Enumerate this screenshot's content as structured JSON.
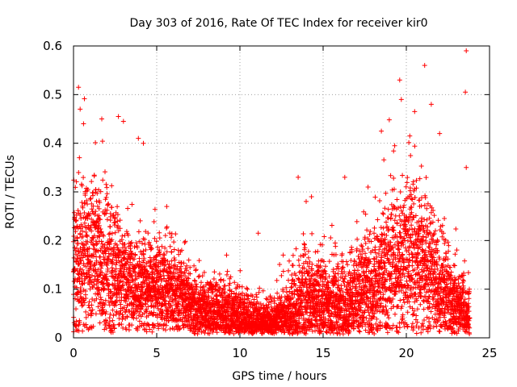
{
  "chart_data": {
    "type": "scatter",
    "title": "Day 303 of 2016, Rate Of TEC Index for receiver kir0",
    "xlabel": "GPS time / hours",
    "ylabel": "ROTI / TECUs",
    "xlim": [
      0,
      25
    ],
    "ylim": [
      0,
      0.6
    ],
    "xticks": [
      0,
      5,
      10,
      15,
      20,
      25
    ],
    "yticks": [
      0,
      0.1,
      0.2,
      0.3,
      0.4,
      0.5,
      0.6
    ],
    "xtick_labels": [
      "0",
      "5",
      "10",
      "15",
      "20",
      "25"
    ],
    "ytick_labels": [
      "0",
      "0.1",
      "0.2",
      "0.3",
      "0.4",
      "0.5",
      "0.6"
    ],
    "grid": true,
    "marker": "+",
    "color": "#ff0000",
    "series": [
      {
        "name": "kir0",
        "sampling_hours": 0.0125,
        "note": "dense scatter of ~15000 points; envelope estimated from the figure",
        "envelope": {
          "hour": [
            0,
            1,
            2,
            3,
            4,
            5,
            6,
            7,
            8,
            9,
            10,
            11,
            12,
            13,
            14,
            15,
            16,
            17,
            18,
            19,
            20,
            21,
            22,
            23,
            23.8
          ],
          "baseline": [
            0.15,
            0.17,
            0.15,
            0.12,
            0.1,
            0.1,
            0.09,
            0.07,
            0.05,
            0.05,
            0.04,
            0.03,
            0.03,
            0.05,
            0.08,
            0.07,
            0.06,
            0.08,
            0.1,
            0.14,
            0.16,
            0.15,
            0.1,
            0.06,
            0.05
          ],
          "spread": [
            0.08,
            0.09,
            0.08,
            0.06,
            0.05,
            0.05,
            0.05,
            0.04,
            0.035,
            0.035,
            0.03,
            0.025,
            0.025,
            0.04,
            0.05,
            0.05,
            0.05,
            0.05,
            0.06,
            0.08,
            0.09,
            0.08,
            0.06,
            0.04,
            0.03
          ]
        },
        "outliers": [
          {
            "x": 0.3,
            "y": 0.515
          },
          {
            "x": 0.4,
            "y": 0.47
          },
          {
            "x": 0.6,
            "y": 0.44
          },
          {
            "x": 1.7,
            "y": 0.45
          },
          {
            "x": 2.7,
            "y": 0.455
          },
          {
            "x": 3.0,
            "y": 0.445
          },
          {
            "x": 3.9,
            "y": 0.41
          },
          {
            "x": 4.2,
            "y": 0.4
          },
          {
            "x": 5.6,
            "y": 0.27
          },
          {
            "x": 6.5,
            "y": 0.18
          },
          {
            "x": 9.2,
            "y": 0.17
          },
          {
            "x": 11.1,
            "y": 0.215
          },
          {
            "x": 12.6,
            "y": 0.17
          },
          {
            "x": 13.5,
            "y": 0.33
          },
          {
            "x": 14.3,
            "y": 0.29
          },
          {
            "x": 16.3,
            "y": 0.33
          },
          {
            "x": 17.7,
            "y": 0.31
          },
          {
            "x": 18.5,
            "y": 0.425
          },
          {
            "x": 19.3,
            "y": 0.395
          },
          {
            "x": 19.6,
            "y": 0.53
          },
          {
            "x": 19.7,
            "y": 0.49
          },
          {
            "x": 20.5,
            "y": 0.465
          },
          {
            "x": 21.1,
            "y": 0.56
          },
          {
            "x": 21.5,
            "y": 0.48
          },
          {
            "x": 22.0,
            "y": 0.42
          },
          {
            "x": 23.6,
            "y": 0.59
          },
          {
            "x": 23.55,
            "y": 0.505
          },
          {
            "x": 23.6,
            "y": 0.35
          }
        ]
      }
    ]
  }
}
